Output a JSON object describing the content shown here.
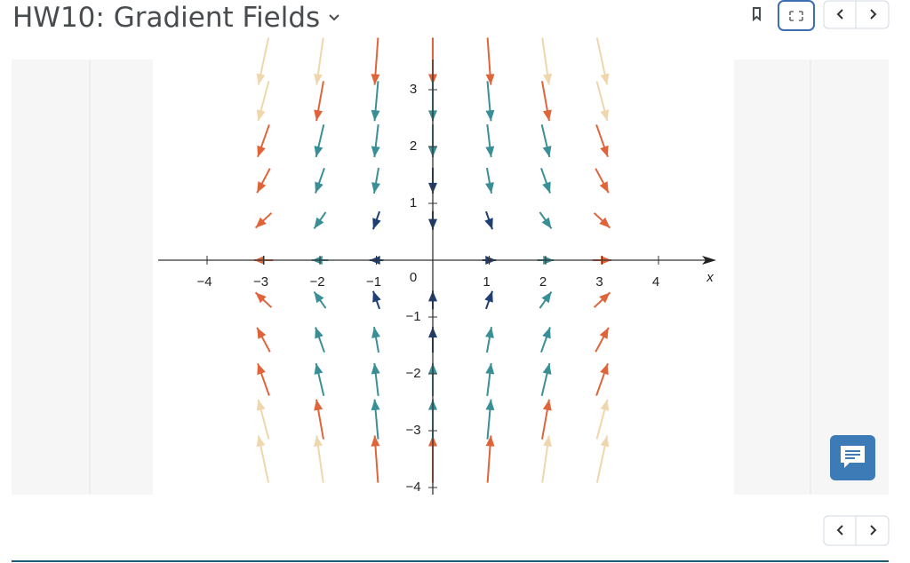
{
  "header": {
    "title": "HW10: Gradient Fields"
  },
  "figure": {
    "x_tick_labels": [
      "−4",
      "−3",
      "−2",
      "−1",
      "1",
      "2",
      "3",
      "4"
    ],
    "y_tick_labels": [
      "3",
      "2",
      "1",
      "0",
      "−1",
      "−2",
      "−3",
      "−4"
    ],
    "x_label": "x"
  }
}
